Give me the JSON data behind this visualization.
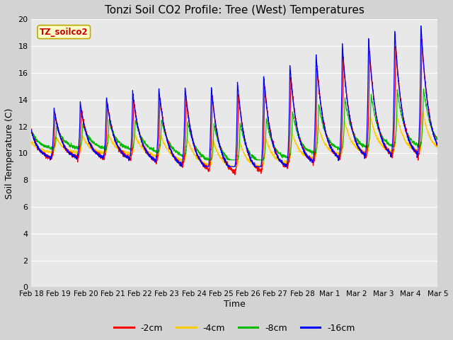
{
  "title": "Tonzi Soil CO2 Profile: Tree (West) Temperatures",
  "xlabel": "Time",
  "ylabel": "Soil Temperature (C)",
  "ylim": [
    0,
    20
  ],
  "yticks": [
    0,
    2,
    4,
    6,
    8,
    10,
    12,
    14,
    16,
    18,
    20
  ],
  "background_color": "#d3d3d3",
  "plot_bg_color": "#e8e8e8",
  "legend_label": "TZ_soilco2",
  "legend_text_color": "#cc0000",
  "legend_bg": "#ffffcc",
  "line_colors": {
    "-2cm": "#ff0000",
    "-4cm": "#ffcc00",
    "-8cm": "#00bb00",
    "-16cm": "#0000ff"
  },
  "line_labels": [
    "-2cm",
    "-4cm",
    "-8cm",
    "-16cm"
  ],
  "xtick_labels": [
    "Feb 18",
    "Feb 19",
    "Feb 20",
    "Feb 21",
    "Feb 22",
    "Feb 23",
    "Feb 24",
    "Feb 25",
    "Feb 26",
    "Feb 27",
    "Feb 28",
    "Mar 1",
    "Mar 2",
    "Mar 3",
    "Mar 4",
    "Mar 5"
  ],
  "num_days": 15.5,
  "figsize": [
    6.4,
    4.8
  ],
  "dpi": 100
}
